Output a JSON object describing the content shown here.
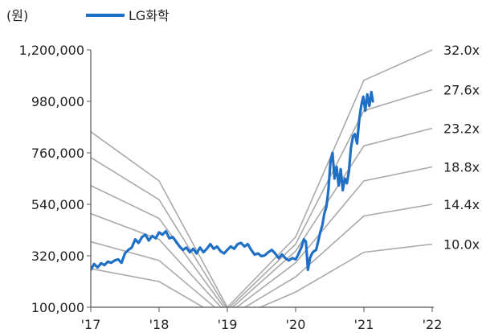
{
  "chart_data": {
    "type": "line",
    "unit_label": "(원)",
    "x_ticks": [
      "'17",
      "'18",
      "'19",
      "'20",
      "'21",
      "'22"
    ],
    "y_ticks": [
      "100,000",
      "320,000",
      "540,000",
      "760,000",
      "980,000",
      "1,200,000"
    ],
    "ylim": [
      100000,
      1200000
    ],
    "xlim": [
      2017,
      2022
    ],
    "legend": {
      "position": "top-left",
      "entries": [
        "LG화학"
      ]
    },
    "colors": {
      "price": "#1f6fc5",
      "bands": "#a9a9a9",
      "axis": "#555555"
    },
    "series": [
      {
        "name": "LG화학",
        "points": [
          [
            2017.0,
            260000
          ],
          [
            2017.05,
            285000
          ],
          [
            2017.1,
            270000
          ],
          [
            2017.15,
            288000
          ],
          [
            2017.2,
            280000
          ],
          [
            2017.25,
            295000
          ],
          [
            2017.3,
            290000
          ],
          [
            2017.35,
            300000
          ],
          [
            2017.4,
            305000
          ],
          [
            2017.45,
            290000
          ],
          [
            2017.5,
            330000
          ],
          [
            2017.55,
            345000
          ],
          [
            2017.6,
            355000
          ],
          [
            2017.65,
            390000
          ],
          [
            2017.7,
            375000
          ],
          [
            2017.75,
            400000
          ],
          [
            2017.8,
            410000
          ],
          [
            2017.85,
            385000
          ],
          [
            2017.9,
            405000
          ],
          [
            2017.95,
            395000
          ],
          [
            2018.0,
            420000
          ],
          [
            2018.05,
            410000
          ],
          [
            2018.1,
            425000
          ],
          [
            2018.15,
            395000
          ],
          [
            2018.2,
            400000
          ],
          [
            2018.25,
            380000
          ],
          [
            2018.3,
            360000
          ],
          [
            2018.35,
            345000
          ],
          [
            2018.4,
            355000
          ],
          [
            2018.45,
            335000
          ],
          [
            2018.5,
            350000
          ],
          [
            2018.55,
            330000
          ],
          [
            2018.6,
            355000
          ],
          [
            2018.65,
            335000
          ],
          [
            2018.7,
            350000
          ],
          [
            2018.75,
            370000
          ],
          [
            2018.8,
            350000
          ],
          [
            2018.85,
            360000
          ],
          [
            2018.9,
            340000
          ],
          [
            2018.95,
            330000
          ],
          [
            2019.0,
            345000
          ],
          [
            2019.05,
            360000
          ],
          [
            2019.1,
            350000
          ],
          [
            2019.15,
            370000
          ],
          [
            2019.2,
            375000
          ],
          [
            2019.25,
            360000
          ],
          [
            2019.3,
            370000
          ],
          [
            2019.35,
            345000
          ],
          [
            2019.4,
            325000
          ],
          [
            2019.45,
            330000
          ],
          [
            2019.5,
            318000
          ],
          [
            2019.55,
            322000
          ],
          [
            2019.6,
            335000
          ],
          [
            2019.65,
            345000
          ],
          [
            2019.7,
            330000
          ],
          [
            2019.75,
            310000
          ],
          [
            2019.8,
            325000
          ],
          [
            2019.85,
            310000
          ],
          [
            2019.9,
            300000
          ],
          [
            2019.95,
            310000
          ],
          [
            2020.0,
            305000
          ],
          [
            2020.03,
            320000
          ],
          [
            2020.06,
            340000
          ],
          [
            2020.09,
            360000
          ],
          [
            2020.12,
            390000
          ],
          [
            2020.15,
            380000
          ],
          [
            2020.18,
            260000
          ],
          [
            2020.21,
            310000
          ],
          [
            2020.24,
            330000
          ],
          [
            2020.27,
            340000
          ],
          [
            2020.3,
            345000
          ],
          [
            2020.33,
            380000
          ],
          [
            2020.36,
            420000
          ],
          [
            2020.39,
            450000
          ],
          [
            2020.42,
            500000
          ],
          [
            2020.45,
            530000
          ],
          [
            2020.48,
            600000
          ],
          [
            2020.51,
            720000
          ],
          [
            2020.54,
            760000
          ],
          [
            2020.57,
            650000
          ],
          [
            2020.6,
            700000
          ],
          [
            2020.63,
            620000
          ],
          [
            2020.66,
            690000
          ],
          [
            2020.69,
            600000
          ],
          [
            2020.72,
            650000
          ],
          [
            2020.75,
            630000
          ],
          [
            2020.78,
            680000
          ],
          [
            2020.81,
            780000
          ],
          [
            2020.84,
            830000
          ],
          [
            2020.87,
            840000
          ],
          [
            2020.9,
            800000
          ],
          [
            2020.93,
            900000
          ],
          [
            2020.96,
            960000
          ],
          [
            2020.99,
            1000000
          ],
          [
            2021.02,
            940000
          ],
          [
            2021.05,
            1010000
          ],
          [
            2021.08,
            960000
          ],
          [
            2021.11,
            1020000
          ],
          [
            2021.13,
            980000
          ]
        ]
      }
    ],
    "pbr_bands": [
      {
        "label": "32.0x",
        "points": [
          [
            2017.0,
            850000
          ],
          [
            2018.0,
            640000
          ],
          [
            2019.0,
            100000
          ],
          [
            2020.0,
            400000
          ],
          [
            2021.0,
            1070000
          ],
          [
            2022.0,
            1200000
          ]
        ]
      },
      {
        "label": "27.6x",
        "points": [
          [
            2017.0,
            740000
          ],
          [
            2018.0,
            560000
          ],
          [
            2019.0,
            90000
          ],
          [
            2020.0,
            370000
          ],
          [
            2021.0,
            940000
          ],
          [
            2022.0,
            1030000
          ]
        ]
      },
      {
        "label": "23.2x",
        "points": [
          [
            2017.0,
            620000
          ],
          [
            2018.0,
            480000
          ],
          [
            2019.0,
            80000
          ],
          [
            2020.0,
            340000
          ],
          [
            2021.0,
            790000
          ],
          [
            2022.0,
            865000
          ]
        ]
      },
      {
        "label": "18.8x",
        "points": [
          [
            2017.0,
            500000
          ],
          [
            2018.0,
            390000
          ],
          [
            2019.0,
            70000
          ],
          [
            2020.0,
            290000
          ],
          [
            2021.0,
            640000
          ],
          [
            2022.0,
            700000
          ]
        ]
      },
      {
        "label": "14.4x",
        "points": [
          [
            2017.0,
            380000
          ],
          [
            2018.0,
            300000
          ],
          [
            2019.0,
            55000
          ],
          [
            2020.0,
            230000
          ],
          [
            2021.0,
            490000
          ],
          [
            2022.0,
            540000
          ]
        ]
      },
      {
        "label": "10.0x",
        "points": [
          [
            2017.0,
            265000
          ],
          [
            2018.0,
            210000
          ],
          [
            2019.0,
            40000
          ],
          [
            2020.0,
            165000
          ],
          [
            2021.0,
            335000
          ],
          [
            2022.0,
            370000
          ]
        ]
      }
    ]
  }
}
